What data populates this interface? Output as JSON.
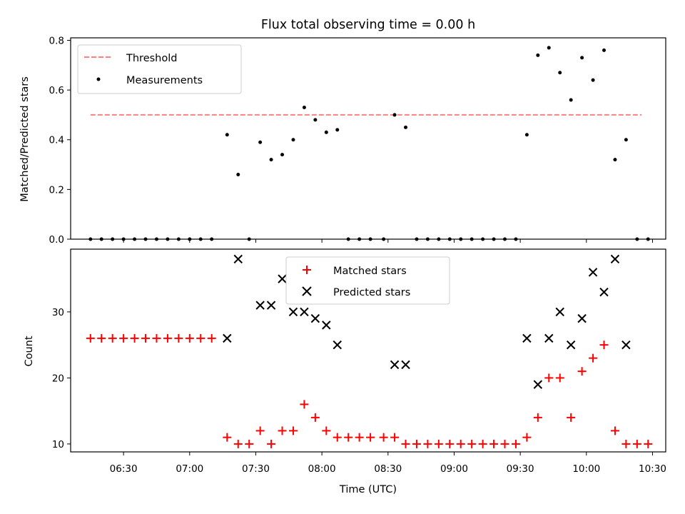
{
  "chart_data": [
    {
      "type": "scatter",
      "title": "Flux total observing time = 0.00 h",
      "xlabel": "",
      "ylabel": "Matched/Predicted stars",
      "ylim": [
        0,
        0.81
      ],
      "xlim": [
        "06:06",
        "10:36"
      ],
      "yticks": [
        0.0,
        0.2,
        0.4,
        0.6,
        0.8
      ],
      "ytick_labels": [
        "0.0",
        "0.2",
        "0.4",
        "0.6",
        "0.8"
      ],
      "legend_placement": "top-left",
      "threshold": {
        "name": "Threshold",
        "value": 0.5,
        "x_start": "06:15",
        "x_end": "10:25",
        "color": "#ff7f7f",
        "style": "dashed"
      },
      "series": [
        {
          "name": "Measurements",
          "marker": "dot",
          "color": "#000000",
          "x": [
            "06:15",
            "06:20",
            "06:25",
            "06:30",
            "06:35",
            "06:40",
            "06:45",
            "06:50",
            "06:55",
            "07:00",
            "07:05",
            "07:10",
            "07:17",
            "07:22",
            "07:27",
            "07:32",
            "07:37",
            "07:42",
            "07:47",
            "07:52",
            "07:57",
            "08:02",
            "08:07",
            "08:12",
            "08:17",
            "08:22",
            "08:28",
            "08:33",
            "08:38",
            "08:43",
            "08:48",
            "08:53",
            "08:58",
            "09:03",
            "09:08",
            "09:13",
            "09:18",
            "09:23",
            "09:28",
            "09:33",
            "09:38",
            "09:43",
            "09:48",
            "09:53",
            "09:58",
            "10:03",
            "10:08",
            "10:13",
            "10:18",
            "10:23",
            "10:28"
          ],
          "y": [
            0.0,
            0.0,
            0.0,
            0.0,
            0.0,
            0.0,
            0.0,
            0.0,
            0.0,
            0.0,
            0.0,
            0.0,
            0.42,
            0.26,
            0.0,
            0.39,
            0.32,
            0.34,
            0.4,
            0.53,
            0.48,
            0.43,
            0.44,
            0.0,
            0.0,
            0.0,
            0.0,
            0.5,
            0.45,
            0.0,
            0.0,
            0.0,
            0.0,
            0.0,
            0.0,
            0.0,
            0.0,
            0.0,
            0.0,
            0.42,
            0.74,
            0.77,
            0.67,
            0.56,
            0.73,
            0.64,
            0.76,
            0.32,
            0.4,
            0.0,
            0.0
          ]
        }
      ]
    },
    {
      "type": "scatter",
      "title": "",
      "xlabel": "Time (UTC)",
      "ylabel": "Count",
      "ylim": [
        8.8,
        39.5
      ],
      "xlim": [
        "06:06",
        "10:36"
      ],
      "yticks": [
        10,
        20,
        30
      ],
      "ytick_labels": [
        "10",
        "20",
        "30"
      ],
      "xticks": [
        "06:30",
        "07:00",
        "07:30",
        "08:00",
        "08:30",
        "09:00",
        "09:30",
        "10:00",
        "10:30"
      ],
      "xtick_labels": [
        "06:30",
        "07:00",
        "07:30",
        "08:00",
        "08:30",
        "09:00",
        "09:30",
        "10:00",
        "10:30"
      ],
      "legend_placement": "top-center",
      "series": [
        {
          "name": "Matched stars",
          "marker": "plus",
          "color": "#ff0000",
          "x": [
            "06:15",
            "06:20",
            "06:25",
            "06:30",
            "06:35",
            "06:40",
            "06:45",
            "06:50",
            "06:55",
            "07:00",
            "07:05",
            "07:10",
            "07:17",
            "07:22",
            "07:27",
            "07:32",
            "07:37",
            "07:42",
            "07:47",
            "07:52",
            "07:57",
            "08:02",
            "08:07",
            "08:12",
            "08:17",
            "08:22",
            "08:28",
            "08:33",
            "08:38",
            "08:43",
            "08:48",
            "08:53",
            "08:58",
            "09:03",
            "09:08",
            "09:13",
            "09:18",
            "09:23",
            "09:28",
            "09:33",
            "09:38",
            "09:43",
            "09:48",
            "09:53",
            "09:58",
            "10:03",
            "10:08",
            "10:13",
            "10:18",
            "10:23",
            "10:28"
          ],
          "y": [
            26,
            26,
            26,
            26,
            26,
            26,
            26,
            26,
            26,
            26,
            26,
            26,
            11,
            10,
            10,
            12,
            10,
            12,
            12,
            16,
            14,
            12,
            11,
            11,
            11,
            11,
            11,
            11,
            10,
            10,
            10,
            10,
            10,
            10,
            10,
            10,
            10,
            10,
            10,
            11,
            14,
            20,
            20,
            14,
            21,
            23,
            25,
            12,
            10,
            10,
            10
          ]
        },
        {
          "name": "Predicted stars",
          "marker": "x",
          "color": "#000000",
          "x": [
            "07:17",
            "07:22",
            "07:32",
            "07:37",
            "07:42",
            "07:47",
            "07:52",
            "07:57",
            "08:02",
            "08:07",
            "08:33",
            "08:38",
            "09:33",
            "09:38",
            "09:43",
            "09:48",
            "09:53",
            "09:58",
            "10:03",
            "10:08",
            "10:13",
            "10:18"
          ],
          "y": [
            26,
            38,
            31,
            31,
            35,
            30,
            30,
            29,
            28,
            25,
            22,
            22,
            26,
            19,
            26,
            30,
            25,
            29,
            36,
            33,
            38,
            25
          ]
        }
      ]
    }
  ]
}
